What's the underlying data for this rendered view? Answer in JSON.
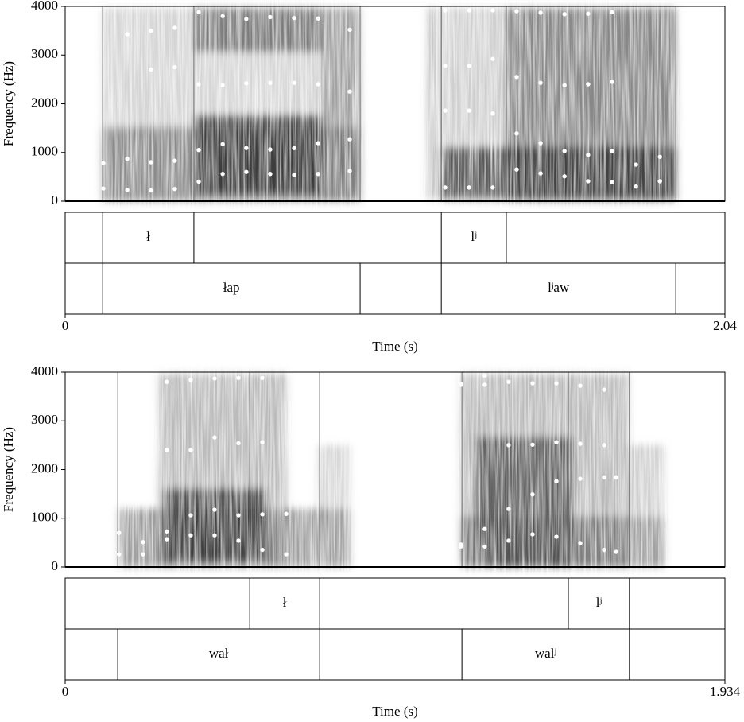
{
  "chart_data": [
    {
      "type": "spectrogram",
      "ylabel": "Frequency (Hz)",
      "xlabel": "Time (s)",
      "xlim": [
        0,
        2.04
      ],
      "xticks": [
        0,
        2.04
      ],
      "ylim": [
        0,
        4000
      ],
      "yticks": [
        0,
        1000,
        2000,
        3000,
        4000
      ],
      "formant_color": "#ffffff",
      "x": [
        0.118,
        0.192,
        0.265,
        0.339,
        0.413,
        0.487,
        0.56,
        0.634,
        0.708,
        0.782,
        0.88,
        1.175,
        1.249,
        1.322,
        1.396,
        1.47,
        1.544,
        1.617,
        1.691,
        1.765,
        1.839
      ],
      "series": [
        {
          "values": [
            260,
            230,
            220,
            250,
            400,
            560,
            600,
            560,
            540,
            560,
            620,
            280,
            280,
            280,
            650,
            570,
            510,
            410,
            390,
            300,
            410
          ]
        },
        {
          "values": [
            780,
            870,
            800,
            830,
            1050,
            1170,
            1090,
            1060,
            1090,
            1190,
            1270,
            1860,
            1860,
            1800,
            1390,
            1190,
            1030,
            950,
            1030,
            750,
            910
          ]
        },
        {
          "values": [
            null,
            null,
            2700,
            2750,
            2400,
            2380,
            2420,
            2430,
            2430,
            2400,
            2250,
            2780,
            2780,
            2920,
            2550,
            2430,
            2380,
            2400,
            2450,
            null,
            null
          ]
        },
        {
          "values": [
            null,
            3430,
            3500,
            3560,
            3880,
            3800,
            3740,
            3780,
            3760,
            3750,
            3520,
            3920,
            3920,
            3920,
            3900,
            3870,
            3840,
            3850,
            3880,
            null,
            null
          ]
        }
      ],
      "tiers": [
        {
          "labels": [
            null,
            "ł",
            null,
            "lʲ",
            null
          ],
          "bounds": [
            0.116,
            0.398,
            1.163,
            1.364
          ]
        },
        {
          "labels": [
            null,
            "łap",
            null,
            "lʲaw",
            null
          ],
          "bounds": [
            0.116,
            0.912,
            1.163,
            1.888
          ]
        }
      ]
    },
    {
      "type": "spectrogram",
      "ylabel": "Frequency (Hz)",
      "xlabel": "Time (s)",
      "xlim": [
        0,
        1.934
      ],
      "xticks": [
        0,
        1.934
      ],
      "ylim": [
        0,
        4000
      ],
      "yticks": [
        0,
        1000,
        2000,
        3000,
        4000
      ],
      "formant_color": "#ffffff",
      "x": [
        0.158,
        0.228,
        0.298,
        0.368,
        0.438,
        0.508,
        0.578,
        0.648,
        1.16,
        1.23,
        1.3,
        1.37,
        1.44,
        1.51,
        1.58,
        1.615
      ],
      "series": [
        {
          "values": [
            260,
            260,
            570,
            650,
            650,
            540,
            350,
            260,
            420,
            420,
            540,
            670,
            620,
            490,
            350,
            310
          ]
        },
        {
          "values": [
            700,
            510,
            730,
            1060,
            1175,
            1060,
            1080,
            1090,
            460,
            780,
            1190,
            1490,
            1760,
            1810,
            1840,
            1840
          ]
        },
        {
          "values": [
            null,
            null,
            2400,
            2400,
            2660,
            2540,
            2560,
            null,
            3740,
            3740,
            2500,
            2510,
            2560,
            2530,
            2500,
            null
          ]
        },
        {
          "values": [
            null,
            3770,
            3800,
            3840,
            3870,
            3880,
            3880,
            null,
            3760,
            3930,
            3800,
            3770,
            3770,
            3720,
            3640,
            null
          ]
        }
      ],
      "tiers": [
        {
          "labels": [
            null,
            "ł",
            null,
            "lʲ",
            null
          ],
          "bounds": [
            0.541,
            0.746,
            1.475,
            1.654
          ]
        },
        {
          "labels": [
            null,
            "wał",
            null,
            "walʲ",
            null
          ],
          "bounds": [
            0.154,
            0.746,
            1.163,
            1.654
          ]
        }
      ]
    }
  ]
}
